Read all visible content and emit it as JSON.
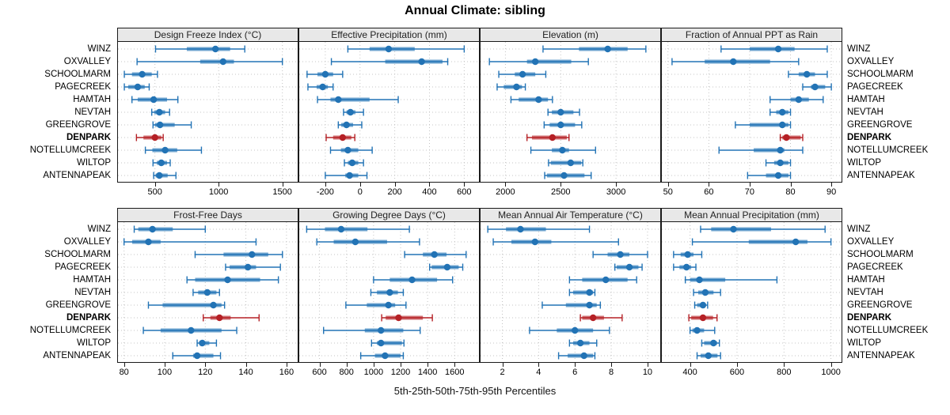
{
  "chart_data": {
    "type": "dotplot-multipanel",
    "title": "Annual Climate: sibling",
    "caption": "5th-25th-50th-75th-95th Percentiles",
    "percentiles_shown": [
      5,
      25,
      50,
      75,
      95
    ],
    "sites": [
      "WINZ",
      "OXVALLEY",
      "SCHOOLMARM",
      "PAGECREEK",
      "HAMTAH",
      "NEVTAH",
      "GREENGROVE",
      "DENPARK",
      "NOTELLUMCREEK",
      "WILTOP",
      "ANTENNAPEAK"
    ],
    "highlight_site": "DENPARK",
    "colors": {
      "blue": "#2273b5",
      "red": "#b52025",
      "grid": "#c4c4c4",
      "strip_bg": "#e8e8e8",
      "border": "#1a1a1a"
    },
    "legend_position": "none",
    "grid": "dotted",
    "panels": [
      {
        "title": "Design Freeze Index (°C)",
        "row": 0,
        "col": 0,
        "xlim": [
          210,
          1620
        ],
        "ticks": [
          500,
          1000,
          1500
        ],
        "series": [
          [
            505,
            750,
            975,
            1090,
            1205
          ],
          [
            360,
            855,
            1035,
            1120,
            1500
          ],
          [
            260,
            320,
            400,
            475,
            520
          ],
          [
            260,
            290,
            365,
            420,
            455
          ],
          [
            320,
            365,
            490,
            595,
            680
          ],
          [
            475,
            495,
            535,
            580,
            615
          ],
          [
            485,
            500,
            540,
            655,
            785
          ],
          [
            355,
            410,
            500,
            550,
            565
          ],
          [
            425,
            480,
            580,
            675,
            865
          ],
          [
            485,
            515,
            550,
            595,
            620
          ],
          [
            490,
            505,
            535,
            600,
            665
          ]
        ]
      },
      {
        "title": "Effective Precipitation (mm)",
        "row": 0,
        "col": 1,
        "xlim": [
          -350,
          685
        ],
        "ticks": [
          -200,
          0,
          200,
          400,
          600
        ],
        "series": [
          [
            -70,
            55,
            165,
            315,
            600
          ],
          [
            -165,
            145,
            355,
            475,
            505
          ],
          [
            -305,
            -245,
            -200,
            -155,
            -100
          ],
          [
            -300,
            -250,
            -215,
            -185,
            -155
          ],
          [
            -245,
            -170,
            -125,
            55,
            220
          ],
          [
            -95,
            -78,
            -55,
            -26,
            20
          ],
          [
            -125,
            -108,
            -78,
            -40,
            10
          ],
          [
            -195,
            -155,
            -100,
            -50,
            -30
          ],
          [
            -170,
            -110,
            -70,
            -10,
            70
          ],
          [
            -90,
            -70,
            -45,
            -10,
            20
          ],
          [
            -200,
            -85,
            -60,
            -10,
            40
          ]
        ]
      },
      {
        "title": "Elevation (m)",
        "row": 0,
        "col": 2,
        "xlim": [
          1775,
          3400
        ],
        "ticks": [
          2000,
          2500,
          3000
        ],
        "series": [
          [
            2340,
            2665,
            2925,
            3105,
            3270
          ],
          [
            1855,
            2195,
            2270,
            2595,
            2750
          ],
          [
            1940,
            2085,
            2155,
            2270,
            2365
          ],
          [
            1925,
            1985,
            2100,
            2150,
            2180
          ],
          [
            2050,
            2120,
            2300,
            2385,
            2425
          ],
          [
            2385,
            2420,
            2500,
            2615,
            2670
          ],
          [
            2350,
            2400,
            2500,
            2630,
            2690
          ],
          [
            2195,
            2240,
            2425,
            2555,
            2575
          ],
          [
            2230,
            2420,
            2515,
            2575,
            2815
          ],
          [
            2390,
            2410,
            2590,
            2685,
            2700
          ],
          [
            2355,
            2375,
            2530,
            2715,
            2775
          ]
        ]
      },
      {
        "title": "Fraction of Annual PPT as Rain",
        "row": 0,
        "col": 3,
        "xlim": [
          48.5,
          92.5
        ],
        "ticks": [
          50,
          60,
          70,
          80,
          90
        ],
        "series": [
          [
            63,
            70,
            77,
            81,
            89
          ],
          [
            51,
            59,
            66,
            75,
            82
          ],
          [
            79.5,
            82,
            84,
            86,
            89
          ],
          [
            83,
            85,
            86,
            88.5,
            90
          ],
          [
            75,
            80,
            82,
            84.5,
            88
          ],
          [
            75,
            76.5,
            78,
            79.5,
            80
          ],
          [
            66.5,
            70,
            78,
            79.5,
            80
          ],
          [
            77.5,
            78,
            79,
            82.5,
            83
          ],
          [
            62.5,
            71,
            77.5,
            78.5,
            83
          ],
          [
            74,
            76,
            77.5,
            79.5,
            80
          ],
          [
            69.5,
            74,
            77,
            79.5,
            80
          ]
        ]
      },
      {
        "title": "Frost-Free Days",
        "row": 1,
        "col": 0,
        "xlim": [
          77,
          165.5
        ],
        "ticks": [
          80,
          100,
          120,
          140,
          160
        ],
        "series": [
          [
            85,
            87,
            94,
            104,
            120
          ],
          [
            80,
            84,
            92,
            98,
            145
          ],
          [
            115,
            129,
            143,
            151,
            158
          ],
          [
            130,
            132,
            141,
            145,
            157
          ],
          [
            111,
            115,
            131,
            147,
            156
          ],
          [
            114,
            116.5,
            121,
            125.5,
            127
          ],
          [
            92,
            99,
            124,
            128,
            129.5
          ],
          [
            119,
            122.5,
            127,
            132.5,
            146.5
          ],
          [
            89.5,
            98,
            113,
            128,
            135.5
          ],
          [
            116,
            117,
            118.5,
            122,
            125.5
          ],
          [
            104,
            114,
            116,
            124,
            127.5
          ]
        ]
      },
      {
        "title": "Growing Degree Days (°C)",
        "row": 1,
        "col": 1,
        "xlim": [
          450,
          1780
        ],
        "ticks": [
          600,
          800,
          1000,
          1200,
          1400,
          1600
        ],
        "series": [
          [
            505,
            640,
            760,
            955,
            1265
          ],
          [
            580,
            705,
            865,
            1100,
            1340
          ],
          [
            1230,
            1365,
            1450,
            1540,
            1685
          ],
          [
            1415,
            1430,
            1545,
            1630,
            1660
          ],
          [
            1000,
            1120,
            1285,
            1470,
            1585
          ],
          [
            980,
            1025,
            1120,
            1180,
            1220
          ],
          [
            795,
            950,
            1110,
            1160,
            1240
          ],
          [
            1060,
            1090,
            1185,
            1365,
            1435
          ],
          [
            630,
            935,
            1055,
            1220,
            1345
          ],
          [
            985,
            1025,
            1055,
            1210,
            1225
          ],
          [
            905,
            1010,
            1085,
            1200,
            1220
          ]
        ]
      },
      {
        "title": "Mean Annual Air Temperature (°C)",
        "row": 1,
        "col": 2,
        "xlim": [
          0.8,
          10.7
        ],
        "ticks": [
          2,
          4,
          6,
          8,
          10
        ],
        "series": [
          [
            1.2,
            2.2,
            3.0,
            4.4,
            6.8
          ],
          [
            1.5,
            2.5,
            3.8,
            4.7,
            8.4
          ],
          [
            7.0,
            7.8,
            8.5,
            9.0,
            10.0
          ],
          [
            8.2,
            8.3,
            9.0,
            9.5,
            9.7
          ],
          [
            5.7,
            6.4,
            7.7,
            8.9,
            9.4
          ],
          [
            5.7,
            5.9,
            6.8,
            7.0,
            7.1
          ],
          [
            4.2,
            5.5,
            6.8,
            7.2,
            7.4
          ],
          [
            6.3,
            6.4,
            7.0,
            7.6,
            8.6
          ],
          [
            3.5,
            5.0,
            6.0,
            7.0,
            7.9
          ],
          [
            5.7,
            5.9,
            6.3,
            6.8,
            7.2
          ],
          [
            5.1,
            5.6,
            6.5,
            7.0,
            7.1
          ]
        ]
      },
      {
        "title": "Mean Annual Precipitation (mm)",
        "row": 1,
        "col": 3,
        "xlim": [
          280,
          1045
        ],
        "ticks": [
          400,
          600,
          800,
          1000
        ],
        "series": [
          [
            445,
            490,
            585,
            745,
            975
          ],
          [
            410,
            650,
            850,
            900,
            1000
          ],
          [
            330,
            360,
            390,
            415,
            450
          ],
          [
            330,
            355,
            385,
            405,
            425
          ],
          [
            380,
            400,
            440,
            550,
            770
          ],
          [
            415,
            435,
            465,
            500,
            530
          ],
          [
            420,
            430,
            455,
            465,
            475
          ],
          [
            395,
            405,
            455,
            498,
            515
          ],
          [
            400,
            410,
            430,
            460,
            505
          ],
          [
            450,
            460,
            500,
            515,
            525
          ],
          [
            430,
            445,
            478,
            517,
            530
          ]
        ]
      }
    ]
  }
}
